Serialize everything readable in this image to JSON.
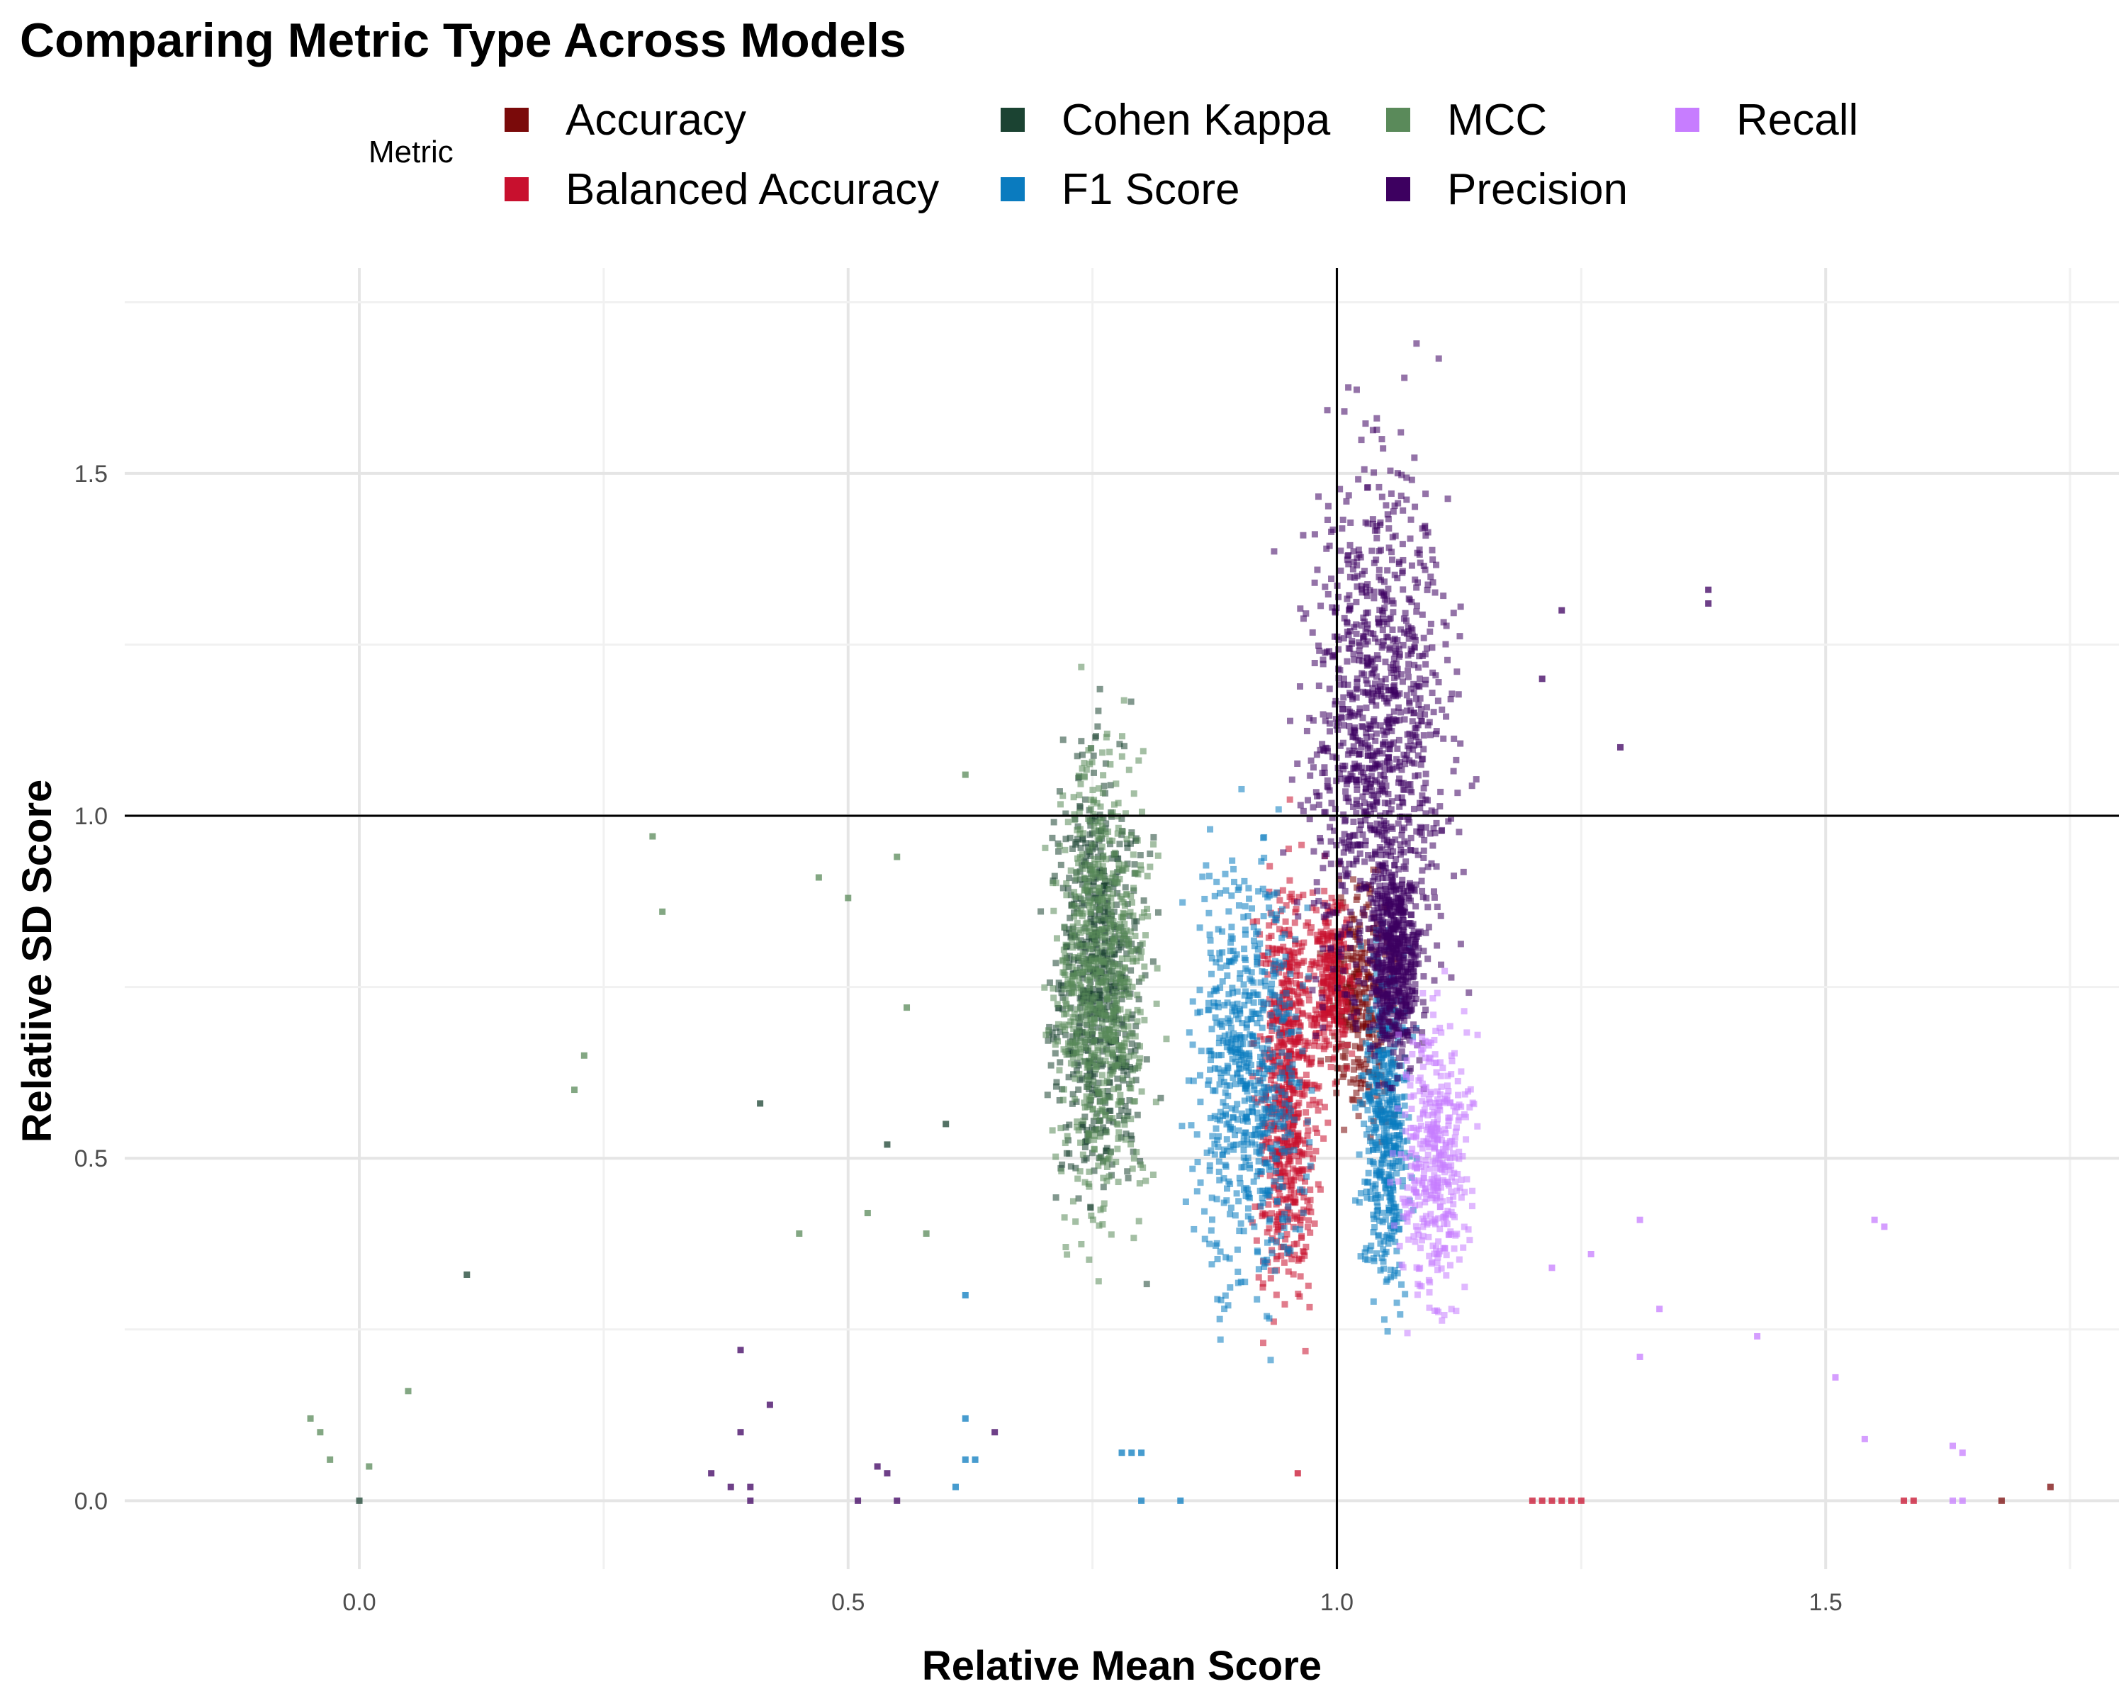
{
  "chart_data": {
    "type": "scatter",
    "title": "Comparing Metric Type Across Models",
    "xlabel": "Relative Mean Score",
    "ylabel": "Relatiive SD Score",
    "xlim": [
      -0.24,
      1.8
    ],
    "ylim": [
      -0.1,
      1.8
    ],
    "xticks": [
      0.0,
      0.5,
      1.0,
      1.5
    ],
    "xtick_labels": [
      "0.0",
      "0.5",
      "1.0",
      "1.5"
    ],
    "yticks": [
      0.0,
      0.5,
      1.0,
      1.5
    ],
    "ytick_labels": [
      "0.0",
      "0.5",
      "1.0",
      "1.5"
    ],
    "reference_lines": {
      "vertical_x": 1.0,
      "horizontal_y": 1.0
    },
    "grid": true,
    "legend_title": "Metric",
    "legend_position": "top",
    "series": [
      {
        "name": "Accuracy",
        "color": "#7a0a0a",
        "clusters": [
          {
            "x": [
              0.97,
              1.08
            ],
            "y": [
              0.45,
              1.0
            ],
            "n": 300
          }
        ],
        "points": [
          [
            1.73,
            0.02
          ],
          [
            1.68,
            0.0
          ]
        ]
      },
      {
        "name": "Balanced Accuracy",
        "color": "#c8102e",
        "clusters": [
          {
            "x": [
              0.9,
              1.0
            ],
            "y": [
              0.1,
              1.1
            ],
            "n": 700
          },
          {
            "x": [
              0.96,
              1.03
            ],
            "y": [
              0.55,
              0.98
            ],
            "n": 250
          }
        ],
        "points": [
          [
            1.2,
            0.0
          ],
          [
            1.21,
            0.0
          ],
          [
            1.22,
            0.0
          ],
          [
            1.23,
            0.0
          ],
          [
            1.24,
            0.0
          ],
          [
            1.25,
            0.0
          ],
          [
            1.58,
            0.0
          ],
          [
            1.59,
            0.0
          ],
          [
            0.96,
            0.04
          ]
        ]
      },
      {
        "name": "Cohen Kappa",
        "color": "#1b4332",
        "clusters": [
          {
            "x": [
              0.68,
              0.83
            ],
            "y": [
              0.25,
              1.3
            ],
            "n": 650
          }
        ],
        "points": [
          [
            0.0,
            0.0
          ],
          [
            0.11,
            0.33
          ],
          [
            0.41,
            0.58
          ],
          [
            0.54,
            0.52
          ],
          [
            0.6,
            0.55
          ]
        ]
      },
      {
        "name": "F1 Score",
        "color": "#0a7bbf",
        "clusters": [
          {
            "x": [
              0.82,
              1.0
            ],
            "y": [
              0.1,
              1.15
            ],
            "n": 650
          },
          {
            "x": [
              1.01,
              1.09
            ],
            "y": [
              0.15,
              0.95
            ],
            "n": 450
          }
        ],
        "points": [
          [
            0.62,
            0.06
          ],
          [
            0.63,
            0.06
          ],
          [
            0.61,
            0.02
          ],
          [
            0.62,
            0.12
          ],
          [
            0.62,
            0.3
          ],
          [
            0.78,
            0.07
          ],
          [
            0.79,
            0.07
          ],
          [
            0.8,
            0.07
          ],
          [
            0.84,
            0.0
          ],
          [
            0.8,
            0.0
          ]
        ]
      },
      {
        "name": "MCC",
        "color": "#5a8a5a",
        "clusters": [
          {
            "x": [
              0.68,
              0.84
            ],
            "y": [
              0.2,
              1.32
            ],
            "n": 750
          }
        ],
        "points": [
          [
            -0.05,
            0.12
          ],
          [
            -0.04,
            0.1
          ],
          [
            -0.03,
            0.06
          ],
          [
            0.01,
            0.05
          ],
          [
            0.05,
            0.16
          ],
          [
            0.22,
            0.6
          ],
          [
            0.23,
            0.65
          ],
          [
            0.3,
            0.97
          ],
          [
            0.31,
            0.86
          ],
          [
            0.45,
            0.39
          ],
          [
            0.47,
            0.91
          ],
          [
            0.5,
            0.88
          ],
          [
            0.52,
            0.42
          ],
          [
            0.56,
            0.72
          ],
          [
            0.58,
            0.39
          ],
          [
            0.62,
            1.06
          ],
          [
            0.55,
            0.94
          ]
        ]
      },
      {
        "name": "Precision",
        "color": "#3d0060",
        "clusters": [
          {
            "x": [
              0.92,
              1.17
            ],
            "y": [
              0.45,
              1.78
            ],
            "n": 1100
          },
          {
            "x": [
              1.02,
              1.1
            ],
            "y": [
              0.55,
              1.02
            ],
            "n": 500
          }
        ],
        "points": [
          [
            0.36,
            0.04
          ],
          [
            0.38,
            0.02
          ],
          [
            0.39,
            0.1
          ],
          [
            0.4,
            0.0
          ],
          [
            0.4,
            0.02
          ],
          [
            0.39,
            0.22
          ],
          [
            0.42,
            0.14
          ],
          [
            0.51,
            0.0
          ],
          [
            0.53,
            0.05
          ],
          [
            0.54,
            0.04
          ],
          [
            0.55,
            0.0
          ],
          [
            0.65,
            0.1
          ],
          [
            1.38,
            1.31
          ],
          [
            1.38,
            1.33
          ],
          [
            1.23,
            1.3
          ],
          [
            1.29,
            1.1
          ],
          [
            1.21,
            1.2
          ]
        ]
      },
      {
        "name": "Recall",
        "color": "#c77dff",
        "clusters": [
          {
            "x": [
              1.04,
              1.16
            ],
            "y": [
              0.15,
              0.85
            ],
            "n": 400
          }
        ],
        "points": [
          [
            1.31,
            0.21
          ],
          [
            1.33,
            0.28
          ],
          [
            1.31,
            0.41
          ],
          [
            1.26,
            0.36
          ],
          [
            1.22,
            0.34
          ],
          [
            1.43,
            0.24
          ],
          [
            1.51,
            0.18
          ],
          [
            1.54,
            0.09
          ],
          [
            1.55,
            0.41
          ],
          [
            1.56,
            0.4
          ],
          [
            1.63,
            0.08
          ],
          [
            1.64,
            0.07
          ],
          [
            1.63,
            0.0
          ],
          [
            1.64,
            0.0
          ]
        ]
      }
    ]
  }
}
